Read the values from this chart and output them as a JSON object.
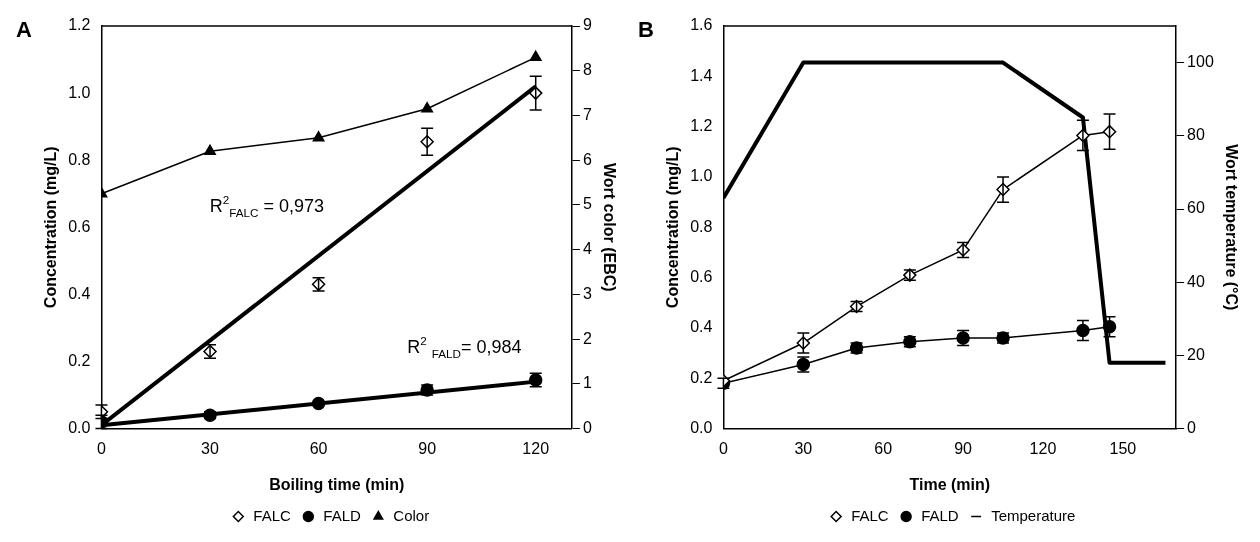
{
  "chart_data": [
    {
      "type": "line",
      "title": "A",
      "xlabel": "Boiling time (min)",
      "ylabel": "Concentration (mg/L)",
      "y2label": "Wort color (EBC)",
      "xlim": [
        0,
        130
      ],
      "xticks": [
        0,
        30,
        60,
        90,
        120
      ],
      "ylim": [
        0,
        1.2
      ],
      "yticks": [
        {
          "value": 0,
          "label": "0.0"
        },
        {
          "value": 0.2,
          "label": "0.2"
        },
        {
          "value": 0.4,
          "label": "0.4"
        },
        {
          "value": 0.6,
          "label": "0.6"
        },
        {
          "value": 0.8,
          "label": "0.8"
        },
        {
          "value": 1,
          "label": "1.0"
        },
        {
          "value": 1.2,
          "label": "1.2"
        }
      ],
      "y2lim": [
        0,
        9
      ],
      "y2ticks": [
        0,
        1,
        2,
        3,
        4,
        5,
        6,
        7,
        8,
        9
      ],
      "grid": false,
      "legend": "bottom",
      "annotations": [
        "R$^{2}$$_{FALC}$ = 0,973",
        "R$^{2}$ $_{FALD}$= 0,984"
      ],
      "series": [
        {
          "name": "FALC",
          "type": "scatter",
          "marker": "diamond",
          "color": "#000000",
          "x": [
            0,
            30,
            60,
            90,
            120
          ],
          "values": [
            0.05,
            0.23,
            0.43,
            0.855,
            1.0
          ],
          "errors": [
            0.02,
            0.02,
            0.02,
            0.04,
            0.05
          ]
        },
        {
          "name": "FALD",
          "type": "scatter",
          "marker": "circle",
          "color": "#000000",
          "x": [
            0,
            30,
            60,
            90,
            120
          ],
          "values": [
            0.02,
            0.04,
            0.075,
            0.115,
            0.145
          ],
          "errors": [
            0.02,
            0.01,
            0.005,
            0.015,
            0.02
          ]
        },
        {
          "name": "Color",
          "type": "line",
          "marker": "triangle",
          "color": "#000000",
          "axis": "y2",
          "x": [
            0,
            30,
            60,
            90,
            120
          ],
          "values": [
            5.25,
            6.2,
            6.5,
            7.15,
            8.3
          ]
        },
        {
          "type": "line",
          "marker": "none",
          "color": "#000000",
          "x": [
            0,
            120
          ],
          "values": [
            0.01,
            1.02
          ]
        },
        {
          "type": "line",
          "marker": "none",
          "color": "#000000",
          "x": [
            0,
            120
          ],
          "values": [
            0.01,
            0.14
          ]
        }
      ]
    },
    {
      "type": "line",
      "title": "B",
      "xlabel": "Time (min)",
      "ylabel": "Concentration (mg/L)",
      "y2label": "Wort temperature (°C)",
      "xlim": [
        0,
        170
      ],
      "xticks": [
        0,
        30,
        60,
        90,
        120,
        150
      ],
      "ylim": [
        0,
        1.6
      ],
      "yticks": [
        {
          "value": 0,
          "label": "0.0"
        },
        {
          "value": 0.2,
          "label": "0.2"
        },
        {
          "value": 0.4,
          "label": "0.4"
        },
        {
          "value": 0.6,
          "label": "0.6"
        },
        {
          "value": 0.8,
          "label": "0.8"
        },
        {
          "value": 1,
          "label": "1.0"
        },
        {
          "value": 1.2,
          "label": "1.2"
        },
        {
          "value": 1.4,
          "label": "1.4"
        },
        {
          "value": 1.6,
          "label": "1.6"
        }
      ],
      "y2lim": [
        0,
        110
      ],
      "y2ticks": [
        0,
        20,
        40,
        60,
        80,
        100
      ],
      "grid": false,
      "legend": "bottom",
      "series": [
        {
          "name": "FALC",
          "type": "line",
          "marker": "diamond",
          "color": "#000000",
          "x": [
            0,
            30,
            50,
            70,
            90,
            105,
            135,
            145
          ],
          "values": [
            0.19,
            0.34,
            0.485,
            0.61,
            0.71,
            0.95,
            1.165,
            1.18
          ],
          "errors": [
            null,
            0.04,
            0.02,
            0.02,
            0.03,
            0.05,
            0.06,
            0.07
          ]
        },
        {
          "name": "FALD",
          "type": "line",
          "marker": "circle",
          "color": "#000000",
          "x": [
            0,
            30,
            50,
            70,
            90,
            105,
            135,
            145
          ],
          "values": [
            0.18,
            0.255,
            0.32,
            0.345,
            0.36,
            0.36,
            0.39,
            0.405
          ],
          "errors": [
            0.02,
            0.03,
            0.02,
            0.02,
            0.03,
            0.02,
            0.04,
            0.04
          ]
        },
        {
          "name": "Temperature",
          "type": "line",
          "marker": "none",
          "color": "#000000",
          "axis": "y2",
          "x": [
            0,
            30,
            105,
            135,
            145,
            166
          ],
          "values": [
            63,
            100,
            100,
            85,
            18,
            18
          ]
        }
      ]
    }
  ]
}
